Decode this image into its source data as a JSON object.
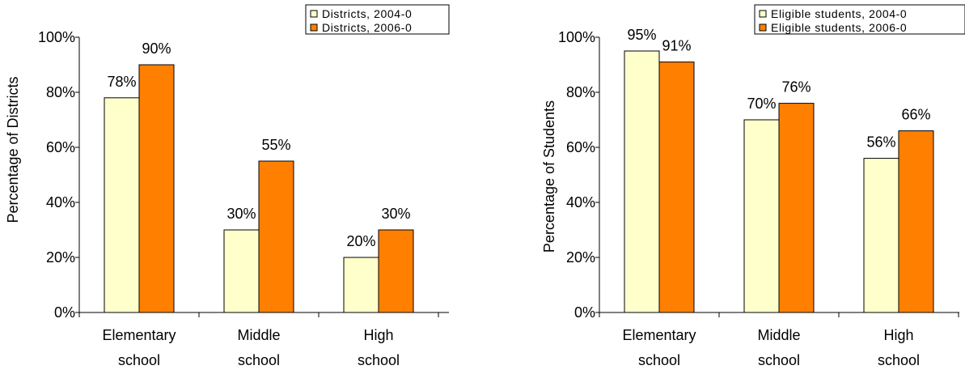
{
  "chart_data": [
    {
      "type": "bar",
      "title": "",
      "xlabel": "",
      "ylabel": "Percentage of Districts",
      "ylim": [
        0,
        100
      ],
      "yticks": [
        "0%",
        "20%",
        "40%",
        "60%",
        "80%",
        "100%"
      ],
      "tick_values": [
        0,
        20,
        40,
        60,
        80,
        100
      ],
      "categories": [
        [
          "Elementary",
          "school"
        ],
        [
          "Middle",
          "school"
        ],
        [
          "High",
          "school"
        ]
      ],
      "legend_position": "top-right",
      "series": [
        {
          "name": "Districts, 2004-0",
          "color": "#ffffcc",
          "values": [
            78,
            30,
            20
          ],
          "labels": [
            "78%",
            "30%",
            "20%"
          ]
        },
        {
          "name": "Districts, 2006-0",
          "color": "#ff7f00",
          "values": [
            90,
            55,
            30
          ],
          "labels": [
            "90%",
            "55%",
            "30%"
          ]
        }
      ]
    },
    {
      "type": "bar",
      "title": "",
      "xlabel": "",
      "ylabel": "Percentage of Students",
      "ylim": [
        0,
        100
      ],
      "yticks": [
        "0%",
        "20%",
        "40%",
        "60%",
        "80%",
        "100%"
      ],
      "tick_values": [
        0,
        20,
        40,
        60,
        80,
        100
      ],
      "categories": [
        [
          "Elementary",
          "school"
        ],
        [
          "Middle",
          "school"
        ],
        [
          "High",
          "school"
        ]
      ],
      "legend_position": "top-right",
      "series": [
        {
          "name": "Eligible students, 2004-0",
          "color": "#ffffcc",
          "values": [
            95,
            70,
            56
          ],
          "labels": [
            "95%",
            "70%",
            "56%"
          ]
        },
        {
          "name": "Eligible students, 2006-0",
          "color": "#ff7f00",
          "values": [
            91,
            76,
            66
          ],
          "labels": [
            "91%",
            "76%",
            "66%"
          ]
        }
      ]
    }
  ]
}
